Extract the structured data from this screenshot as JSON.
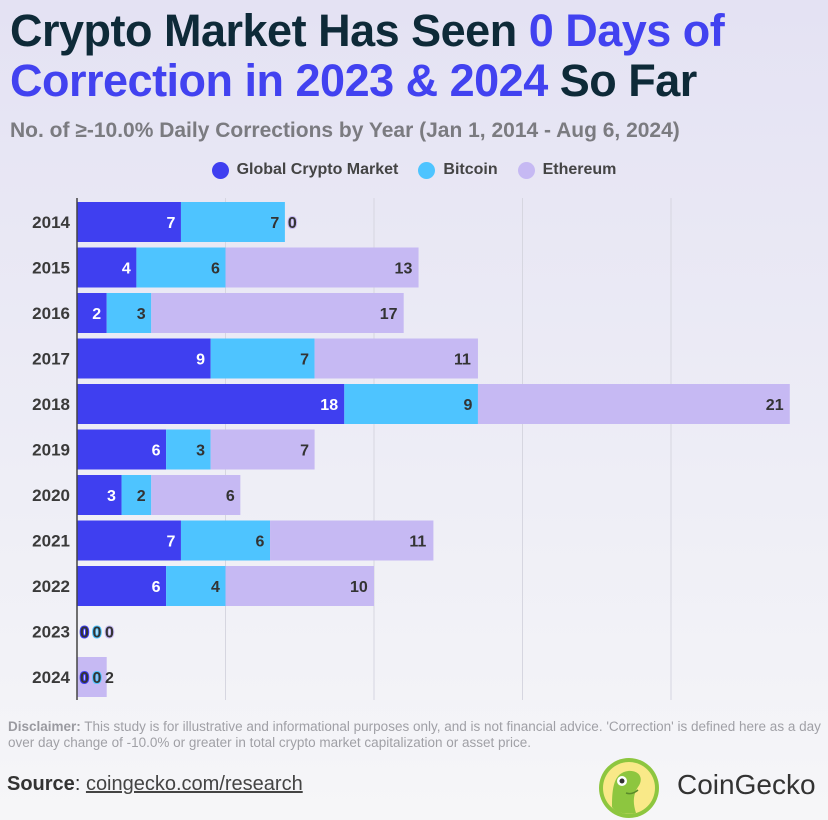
{
  "title": {
    "part1": "Crypto Market Has Seen ",
    "accent1": "0 Days of",
    "accent2": "Correction in 2023 & 2024",
    "part2": " So Far"
  },
  "subtitle": "No. of ≥-10.0% Daily Corrections by Year (Jan 1, 2014 - Aug 6, 2024)",
  "colors": {
    "global": "#3f3ff0",
    "bitcoin": "#4ec4ff",
    "ethereum": "#c6b9f3",
    "title": "#0e2a38",
    "accent": "#4242f0"
  },
  "chart_data": {
    "type": "bar",
    "orientation": "horizontal",
    "stacked": true,
    "categories": [
      "2014",
      "2015",
      "2016",
      "2017",
      "2018",
      "2019",
      "2020",
      "2021",
      "2022",
      "2023",
      "2024"
    ],
    "series": [
      {
        "name": "Global Crypto Market",
        "values": [
          7,
          4,
          2,
          9,
          18,
          6,
          3,
          7,
          6,
          0,
          0
        ]
      },
      {
        "name": "Bitcoin",
        "values": [
          7,
          6,
          3,
          7,
          9,
          3,
          2,
          6,
          4,
          0,
          0
        ]
      },
      {
        "name": "Ethereum",
        "values": [
          0,
          13,
          17,
          11,
          21,
          7,
          6,
          11,
          10,
          0,
          2
        ]
      }
    ],
    "xlim": [
      0,
      48
    ],
    "grid": true,
    "legend": "top"
  },
  "disclaimer": {
    "label": "Disclaimer:",
    "text": " This study is for illustrative and informational purposes only, and is not financial advice. 'Correction' is defined here as a day over day change of -10.0% or greater in total crypto market capitalization or asset price."
  },
  "source": {
    "label": "Source",
    "link": "coingecko.com/research"
  },
  "brand": "CoinGecko"
}
